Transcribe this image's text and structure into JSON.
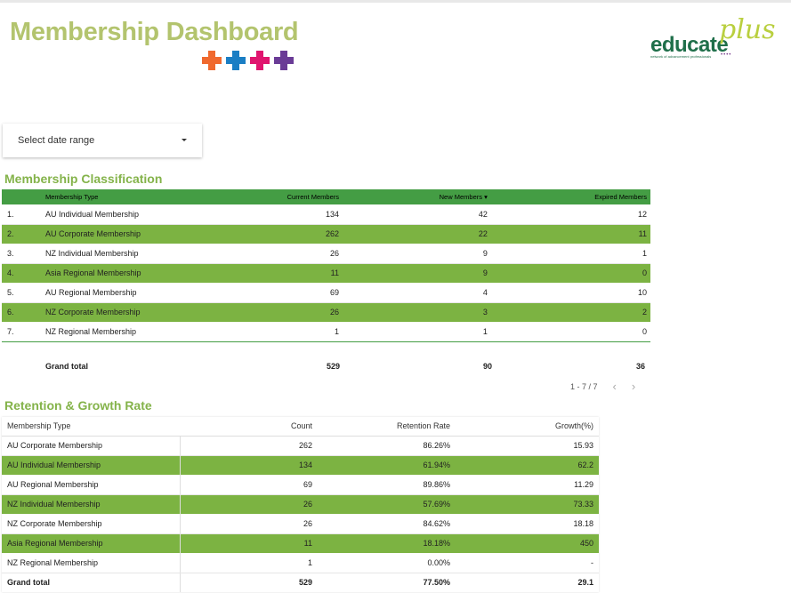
{
  "header": {
    "title": "Membership Dashboard",
    "cross_colors": [
      "#f0692e",
      "#1a7ec4",
      "#e0156f",
      "#6a3b96"
    ],
    "logo": {
      "main": "educate",
      "accent": "plus",
      "tagline": "network of advancement professionals",
      "dots": "••••"
    }
  },
  "controls": {
    "date_range_label": "Select date range"
  },
  "classification": {
    "title": "Membership Classification",
    "columns": [
      "Membership Type",
      "Current Members",
      "New Members ▾",
      "Expired Members"
    ],
    "rows": [
      {
        "idx": "1.",
        "type": "AU Individual Membership",
        "current": "134",
        "new": "42",
        "expired": "12"
      },
      {
        "idx": "2.",
        "type": "AU Corporate Membership",
        "current": "262",
        "new": "22",
        "expired": "11"
      },
      {
        "idx": "3.",
        "type": "NZ Individual Membership",
        "current": "26",
        "new": "9",
        "expired": "1"
      },
      {
        "idx": "4.",
        "type": "Asia Regional Membership",
        "current": "11",
        "new": "9",
        "expired": "0"
      },
      {
        "idx": "5.",
        "type": "AU Regional Membership",
        "current": "69",
        "new": "4",
        "expired": "10"
      },
      {
        "idx": "6.",
        "type": "NZ Corporate Membership",
        "current": "26",
        "new": "3",
        "expired": "2"
      },
      {
        "idx": "7.",
        "type": "NZ Regional Membership",
        "current": "1",
        "new": "1",
        "expired": "0"
      }
    ],
    "grand_total": {
      "label": "Grand total",
      "current": "529",
      "new": "90",
      "expired": "36"
    },
    "pagination": {
      "text": "1 - 7 / 7",
      "prev": "‹",
      "next": "›"
    }
  },
  "retention": {
    "title": "Retention & Growth Rate",
    "columns": [
      "Membership Type",
      "Count",
      "Retention Rate",
      "Growth(%)"
    ],
    "rows": [
      {
        "type": "AU Corporate Membership",
        "count": "262",
        "retention": "86.26%",
        "growth": "15.93"
      },
      {
        "type": "AU Individual Membership",
        "count": "134",
        "retention": "61.94%",
        "growth": "62.2"
      },
      {
        "type": "AU Regional Membership",
        "count": "69",
        "retention": "89.86%",
        "growth": "11.29"
      },
      {
        "type": "NZ Individual Membership",
        "count": "26",
        "retention": "57.69%",
        "growth": "73.33"
      },
      {
        "type": "NZ Corporate Membership",
        "count": "26",
        "retention": "84.62%",
        "growth": "18.18"
      },
      {
        "type": "Asia Regional Membership",
        "count": "11",
        "retention": "18.18%",
        "growth": "450"
      },
      {
        "type": "NZ Regional Membership",
        "count": "1",
        "retention": "0.00%",
        "growth": "-"
      }
    ],
    "grand_total": {
      "label": "Grand total",
      "count": "529",
      "retention": "77.50%",
      "growth": "29.1"
    }
  }
}
